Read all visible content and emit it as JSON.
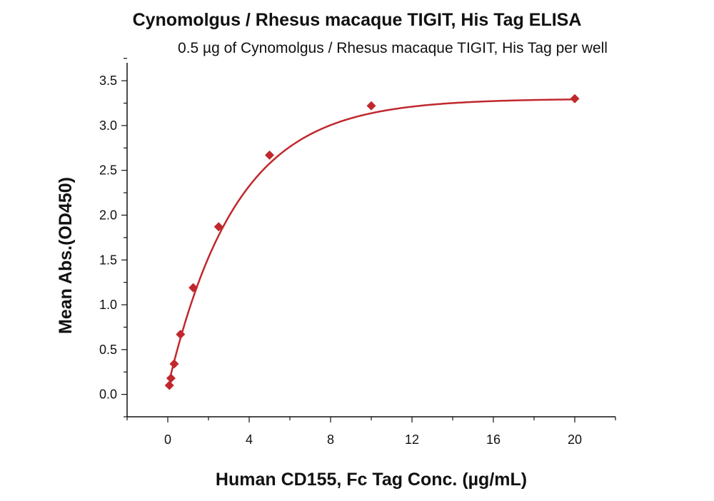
{
  "chart_data": {
    "type": "scatter",
    "title": "Cynomolgus / Rhesus macaque TIGIT, His Tag ELISA",
    "subtitle": "0.5 µg of Cynomolgus / Rhesus macaque TIGIT, His Tag per well",
    "xlabel": "Human CD155, Fc Tag Conc. (µg/mL)",
    "ylabel": "Mean Abs.(OD450)",
    "xlim": [
      -2,
      22
    ],
    "ylim": [
      -0.25,
      3.7
    ],
    "xticks": [
      0,
      4,
      8,
      12,
      16,
      20
    ],
    "yticks": [
      0.0,
      0.5,
      1.0,
      1.5,
      2.0,
      2.5,
      3.0,
      3.5
    ],
    "xtick_labels": [
      "0",
      "4",
      "8",
      "12",
      "16",
      "20"
    ],
    "ytick_labels": [
      "0.0",
      "0.5",
      "1.0",
      "1.5",
      "2.0",
      "2.5",
      "3.0",
      "3.5"
    ],
    "grid": false,
    "series": [
      {
        "color": "#c0282d",
        "marker": "diamond",
        "x": [
          0.078,
          0.156,
          0.313,
          0.625,
          1.25,
          2.5,
          5,
          10,
          20
        ],
        "y": [
          0.1,
          0.18,
          0.34,
          0.67,
          1.19,
          1.87,
          2.67,
          3.22,
          3.3
        ],
        "fit_curve": true
      }
    ]
  }
}
